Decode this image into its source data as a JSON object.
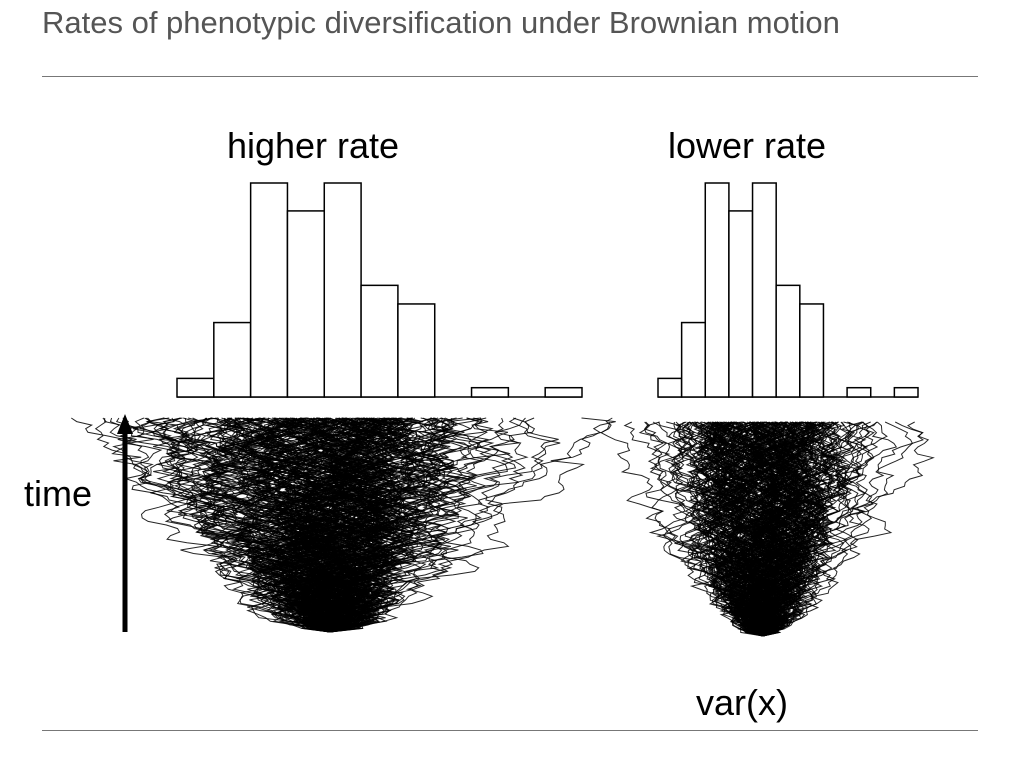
{
  "slide": {
    "title": "Rates of phenotypic diversification under Brownian motion"
  },
  "figure": {
    "axis_label": "time",
    "footer_label": "var(x)",
    "panels": [
      {
        "label": "higher rate",
        "histogram_counts": [
          2,
          8,
          23,
          20,
          23,
          12,
          10,
          0,
          1,
          0,
          1
        ]
      },
      {
        "label": "lower rate",
        "histogram_counts": [
          2,
          8,
          23,
          20,
          23,
          12,
          10,
          0,
          1,
          0,
          1
        ]
      }
    ]
  },
  "colors": {
    "title": "#555555",
    "ink": "#000000",
    "rule": "#777777"
  }
}
